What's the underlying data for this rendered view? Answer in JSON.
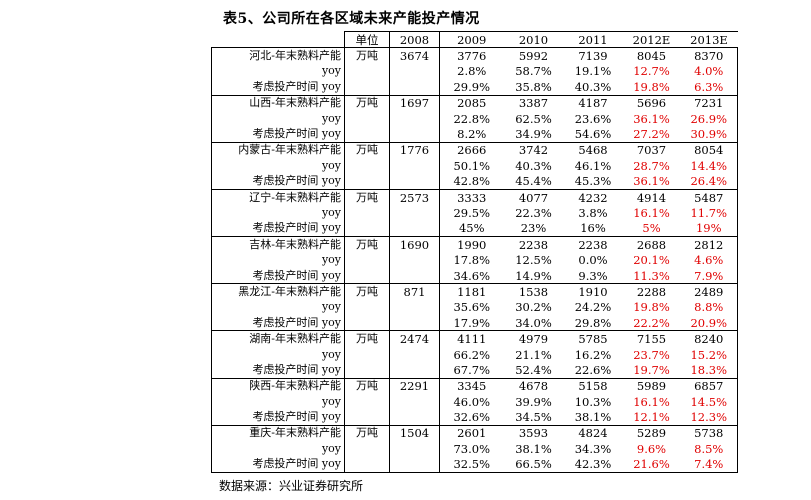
{
  "title": "表5、公司所在各区域未来产能投产情况",
  "columns": [
    "",
    "单位",
    "2008",
    "2009",
    "2010",
    "2011",
    "2012E",
    "2013E"
  ],
  "row_labels": {
    "yoy": "yoy",
    "time": "考虑投产时间 yoy"
  },
  "unit": "万吨",
  "regions": [
    {
      "name": "河北-年末熟料产能",
      "v2008": "3674",
      "cap": [
        "3776",
        "5992",
        "7139",
        "8045",
        "8370"
      ],
      "yoy": [
        "2.8%",
        "58.7%",
        "19.1%",
        "12.7%",
        "4.0%"
      ],
      "time": [
        "29.9%",
        "35.8%",
        "40.3%",
        "19.8%",
        "6.3%"
      ]
    },
    {
      "name": "山西-年末熟料产能",
      "v2008": "1697",
      "cap": [
        "2085",
        "3387",
        "4187",
        "5696",
        "7231"
      ],
      "yoy": [
        "22.8%",
        "62.5%",
        "23.6%",
        "36.1%",
        "26.9%"
      ],
      "time": [
        "8.2%",
        "34.9%",
        "54.6%",
        "27.2%",
        "30.9%"
      ]
    },
    {
      "name": "内蒙古-年末熟料产能",
      "v2008": "1776",
      "cap": [
        "2666",
        "3742",
        "5468",
        "7037",
        "8054"
      ],
      "yoy": [
        "50.1%",
        "40.3%",
        "46.1%",
        "28.7%",
        "14.4%"
      ],
      "time": [
        "42.8%",
        "45.4%",
        "45.3%",
        "36.1%",
        "26.4%"
      ]
    },
    {
      "name": "辽宁-年末熟料产能",
      "v2008": "2573",
      "cap": [
        "3333",
        "4077",
        "4232",
        "4914",
        "5487"
      ],
      "yoy": [
        "29.5%",
        "22.3%",
        "3.8%",
        "16.1%",
        "11.7%"
      ],
      "time": [
        "45%",
        "23%",
        "16%",
        "5%",
        "19%"
      ]
    },
    {
      "name": "吉林-年末熟料产能",
      "v2008": "1690",
      "cap": [
        "1990",
        "2238",
        "2238",
        "2688",
        "2812"
      ],
      "yoy": [
        "17.8%",
        "12.5%",
        "0.0%",
        "20.1%",
        "4.6%"
      ],
      "time": [
        "34.6%",
        "14.9%",
        "9.3%",
        "11.3%",
        "7.9%"
      ]
    },
    {
      "name": "黑龙江-年末熟料产能",
      "v2008": "871",
      "cap": [
        "1181",
        "1538",
        "1910",
        "2288",
        "2489"
      ],
      "yoy": [
        "35.6%",
        "30.2%",
        "24.2%",
        "19.8%",
        "8.8%"
      ],
      "time": [
        "17.9%",
        "34.0%",
        "29.8%",
        "22.2%",
        "20.9%"
      ]
    },
    {
      "name": "湖南-年末熟料产能",
      "v2008": "2474",
      "cap": [
        "4111",
        "4979",
        "5785",
        "7155",
        "8240"
      ],
      "yoy": [
        "66.2%",
        "21.1%",
        "16.2%",
        "23.7%",
        "15.2%"
      ],
      "time": [
        "67.7%",
        "52.4%",
        "22.6%",
        "19.7%",
        "18.3%"
      ]
    },
    {
      "name": "陕西-年末熟料产能",
      "v2008": "2291",
      "cap": [
        "3345",
        "4678",
        "5158",
        "5989",
        "6857"
      ],
      "yoy": [
        "46.0%",
        "39.9%",
        "10.3%",
        "16.1%",
        "14.5%"
      ],
      "time": [
        "32.6%",
        "34.5%",
        "38.1%",
        "12.1%",
        "12.3%"
      ]
    },
    {
      "name": "重庆-年末熟料产能",
      "v2008": "1504",
      "cap": [
        "2601",
        "3593",
        "4824",
        "5289",
        "5738"
      ],
      "yoy": [
        "73.0%",
        "38.1%",
        "34.3%",
        "9.6%",
        "8.5%"
      ],
      "time": [
        "32.5%",
        "66.5%",
        "42.3%",
        "21.6%",
        "7.4%"
      ]
    }
  ],
  "source": "数据来源：兴业证券研究所"
}
